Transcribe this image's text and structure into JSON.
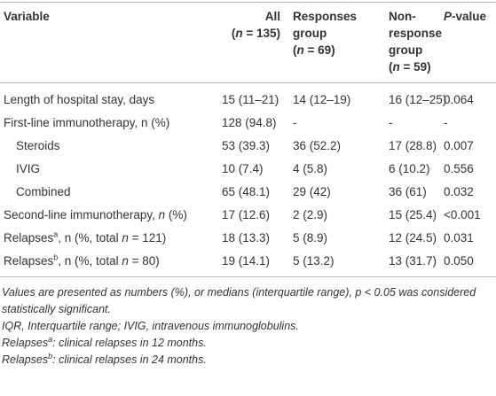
{
  "table": {
    "headers": [
      [
        [
          "Variable"
        ]
      ],
      [
        [
          "All"
        ],
        [
          "(",
          {
            "text": "n",
            "style": "italic"
          },
          " = 135)"
        ]
      ],
      [
        [
          "Responses"
        ],
        [
          "group"
        ],
        [
          "(",
          {
            "text": "n",
            "style": "italic"
          },
          " = 69)"
        ]
      ],
      [
        [
          "Non-"
        ],
        [
          "response"
        ],
        [
          "group"
        ],
        [
          "(",
          {
            "text": "n",
            "style": "italic"
          },
          " = 59)"
        ]
      ],
      [
        [
          {
            "text": "P",
            "style": "italic"
          },
          "-value"
        ]
      ]
    ],
    "rows": [
      {
        "cells": [
          [
            "Length of hospital stay, days"
          ],
          "15 (11–21)",
          "14 (12–19)",
          "16 (12–25)",
          "0.064"
        ]
      },
      {
        "cells": [
          [
            "First-line immunotherapy, n (%)"
          ],
          "128 (94.8)",
          "-",
          "-",
          "-"
        ]
      },
      {
        "cells": [
          [
            "Steroids"
          ],
          "53 (39.3)",
          "36 (52.2)",
          "17 (28.8)",
          "0.007"
        ],
        "indent": true
      },
      {
        "cells": [
          [
            "IVIG"
          ],
          "10 (7.4)",
          "4 (5.8)",
          "6 (10.2)",
          "0.556"
        ],
        "indent": true
      },
      {
        "cells": [
          [
            "Combined"
          ],
          "65 (48.1)",
          "29 (42)",
          "36 (61)",
          "0.032"
        ],
        "indent": true
      },
      {
        "cells": [
          [
            "Second-line immunotherapy, ",
            {
              "text": "n",
              "style": "italic"
            },
            " (%)"
          ],
          "17 (12.6)",
          "2 (2.9)",
          "15 (25.4)",
          "<0.001"
        ]
      },
      {
        "cells": [
          [
            "Relapses",
            {
              "text": "a",
              "style": "superscript"
            },
            ", n (%, total ",
            {
              "text": "n",
              "style": "italic"
            },
            " = 121)"
          ],
          "18 (13.3)",
          "5 (8.9)",
          "12 (24.5)",
          "0.031"
        ]
      },
      {
        "cells": [
          [
            "Relapses",
            {
              "text": "b",
              "style": "superscript"
            },
            ", n (%, total ",
            {
              "text": "n",
              "style": "italic"
            },
            " = 80)"
          ],
          "19 (14.1)",
          "5 (13.2)",
          "13 (31.7)",
          "0.050"
        ]
      }
    ]
  },
  "footnotes": [
    [
      "Values are presented as numbers (%), or medians (interquartile range), p < 0.05 was considered statistically significant."
    ],
    [
      "IQR, Interquartile range; IVIG, intravenous immunoglobulins."
    ],
    [
      "Relapses",
      {
        "text": "a",
        "style": "superscript"
      },
      ": clinical relapses in 12 months."
    ],
    [
      "Relapses",
      {
        "text": "b",
        "style": "superscript"
      },
      ": clinical relapses in 24 months."
    ]
  ]
}
